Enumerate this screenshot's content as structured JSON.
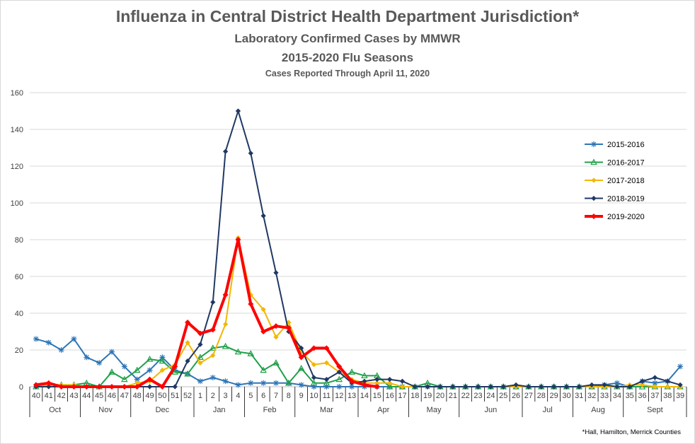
{
  "titles": {
    "main": "Influenza in Central District Health Department Jurisdiction*",
    "sub1": "Laboratory  Confirmed  Cases  by MMWR",
    "sub2": "2015-2020 Flu Seasons",
    "sub3": "Cases  Reported Through April 11, 2020"
  },
  "footnote": "*Hall, Hamilton, Merrick Counties",
  "chart_data": {
    "type": "line",
    "ylim": [
      0,
      160
    ],
    "yticks": [
      0,
      20,
      40,
      60,
      80,
      100,
      120,
      140,
      160
    ],
    "grid": true,
    "legend_position": "right",
    "weeks": [
      "40",
      "41",
      "42",
      "43",
      "44",
      "45",
      "46",
      "47",
      "48",
      "49",
      "50",
      "51",
      "52",
      "1",
      "2",
      "3",
      "4",
      "5",
      "6",
      "7",
      "8",
      "9",
      "10",
      "11",
      "12",
      "13",
      "14",
      "15",
      "16",
      "17",
      "18",
      "19",
      "20",
      "21",
      "22",
      "23",
      "24",
      "25",
      "26",
      "27",
      "28",
      "29",
      "30",
      "31",
      "32",
      "33",
      "34",
      "35",
      "36",
      "37",
      "38",
      "39"
    ],
    "months": [
      {
        "label": "Oct",
        "start": 0,
        "end": 4
      },
      {
        "label": "Nov",
        "start": 4,
        "end": 8
      },
      {
        "label": "Dec",
        "start": 8,
        "end": 13
      },
      {
        "label": "Jan",
        "start": 13,
        "end": 17
      },
      {
        "label": "Feb",
        "start": 17,
        "end": 21
      },
      {
        "label": "Mar",
        "start": 21,
        "end": 26
      },
      {
        "label": "Apr",
        "start": 26,
        "end": 30
      },
      {
        "label": "May",
        "start": 30,
        "end": 34
      },
      {
        "label": "Jun",
        "start": 34,
        "end": 39
      },
      {
        "label": "Jul",
        "start": 39,
        "end": 43
      },
      {
        "label": "Aug",
        "start": 43,
        "end": 47
      },
      {
        "label": "Sept",
        "start": 47,
        "end": 52
      }
    ],
    "series": [
      {
        "name": "2015-2016",
        "color": "#2e75b6",
        "marker": "star",
        "width": 2,
        "values": [
          26,
          24,
          20,
          26,
          16,
          13,
          19,
          11,
          4,
          9,
          16,
          9,
          7,
          3,
          5,
          3,
          1,
          2,
          2,
          2,
          2,
          1,
          0,
          0,
          0,
          0,
          0,
          0,
          0,
          0,
          0,
          0,
          0,
          0,
          0,
          0,
          0,
          0,
          0,
          0,
          0,
          0,
          0,
          0,
          0,
          1,
          2,
          0,
          3,
          2,
          3,
          11
        ]
      },
      {
        "name": "2016-2017",
        "color": "#21a04a",
        "marker": "triangle",
        "width": 2,
        "values": [
          0,
          1,
          1,
          1,
          2,
          0,
          8,
          4,
          9,
          15,
          14,
          8,
          7,
          16,
          21,
          22,
          19,
          18,
          9,
          13,
          2,
          10,
          2,
          2,
          4,
          8,
          6,
          6,
          0,
          0,
          0,
          2,
          0,
          0,
          0,
          0,
          0,
          0,
          0,
          0,
          0,
          0,
          0,
          0,
          0,
          0,
          0,
          0,
          0,
          0,
          0,
          0
        ]
      },
      {
        "name": "2017-2018",
        "color": "#f2b705",
        "marker": "diamond",
        "width": 2,
        "values": [
          0,
          1,
          1,
          1,
          0,
          0,
          0,
          0,
          2,
          3,
          9,
          12,
          24,
          13,
          17,
          34,
          81,
          50,
          42,
          27,
          35,
          19,
          12,
          13,
          8,
          4,
          2,
          2,
          2,
          0,
          0,
          0,
          0,
          0,
          0,
          0,
          0,
          0,
          0,
          0,
          0,
          0,
          0,
          0,
          0,
          0,
          0,
          1,
          1,
          0,
          0,
          0
        ]
      },
      {
        "name": "2018-2019",
        "color": "#203864",
        "marker": "diamond",
        "width": 2,
        "values": [
          0,
          0,
          0,
          0,
          0,
          0,
          0,
          0,
          0,
          0,
          0,
          0,
          14,
          23,
          46,
          128,
          150,
          127,
          93,
          62,
          30,
          21,
          5,
          4,
          8,
          2,
          3,
          4,
          4,
          3,
          0,
          0,
          0,
          0,
          0,
          0,
          0,
          0,
          1,
          0,
          0,
          0,
          0,
          0,
          1,
          1,
          0,
          0,
          3,
          5,
          3,
          1
        ]
      },
      {
        "name": "2019-2020",
        "color": "#ff0000",
        "marker": "diamond",
        "width": 4,
        "values": [
          1,
          2,
          0,
          0,
          0,
          0,
          0,
          0,
          0,
          4,
          0,
          11,
          35,
          29,
          31,
          50,
          80,
          45,
          30,
          33,
          32,
          16,
          21,
          21,
          11,
          3,
          1,
          0,
          null,
          null,
          null,
          null,
          null,
          null,
          null,
          null,
          null,
          null,
          null,
          null,
          null,
          null,
          null,
          null,
          null,
          null,
          null,
          null,
          null,
          null,
          null,
          null
        ]
      }
    ]
  }
}
